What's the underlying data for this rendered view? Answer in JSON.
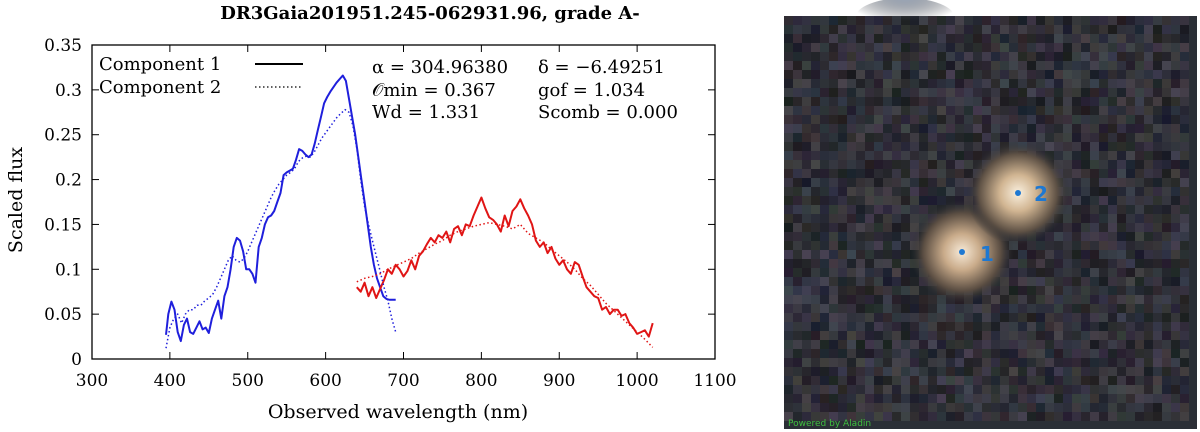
{
  "chart_data": {
    "type": "line",
    "title": "DR3Gaia201951.245-062931.96, grade A-",
    "xlabel": "Observed wavelength (nm)",
    "ylabel": "Scaled flux",
    "xlim": [
      300,
      1100
    ],
    "ylim": [
      0,
      0.35
    ],
    "xticks": [
      "300",
      "400",
      "500",
      "600",
      "700",
      "800",
      "900",
      "1000",
      "1100"
    ],
    "yticks": [
      "0",
      "0.05",
      "0.1",
      "0.15",
      "0.2",
      "0.25",
      "0.3",
      "0.35"
    ],
    "legend": {
      "position": "top-left",
      "entries": [
        "Component 1",
        "Component 2"
      ]
    },
    "annotations": [
      "α = 304.96380",
      "δ = −6.49251",
      "𝒪min = 0.367",
      "gof = 1.034",
      "Wd = 1.331",
      "Scomb = 0.000"
    ],
    "colors": {
      "blue": "#1f1fdc",
      "red": "#e01515",
      "axis": "#000000"
    },
    "series": [
      {
        "name": "Component 1",
        "segment": "BP",
        "style": "solid",
        "color": "#1f1fdc",
        "x": [
          395,
          398,
          402,
          406,
          410,
          414,
          418,
          422,
          426,
          430,
          434,
          438,
          442,
          446,
          450,
          454,
          458,
          462,
          466,
          470,
          474,
          478,
          482,
          486,
          490,
          494,
          498,
          502,
          506,
          510,
          514,
          518,
          522,
          526,
          530,
          534,
          538,
          542,
          546,
          550,
          554,
          558,
          562,
          566,
          570,
          574,
          578,
          582,
          586,
          590,
          594,
          598,
          602,
          606,
          610,
          614,
          618,
          622,
          626,
          630,
          634,
          638,
          642,
          646,
          650,
          654,
          658,
          662,
          666,
          670,
          674,
          678,
          682,
          686,
          690
        ],
        "y": [
          0.027,
          0.05,
          0.064,
          0.055,
          0.03,
          0.02,
          0.038,
          0.045,
          0.03,
          0.028,
          0.035,
          0.042,
          0.033,
          0.035,
          0.029,
          0.045,
          0.055,
          0.065,
          0.045,
          0.07,
          0.08,
          0.1,
          0.125,
          0.135,
          0.132,
          0.12,
          0.1,
          0.1,
          0.095,
          0.085,
          0.125,
          0.135,
          0.15,
          0.158,
          0.16,
          0.165,
          0.175,
          0.185,
          0.205,
          0.208,
          0.21,
          0.212,
          0.222,
          0.234,
          0.232,
          0.228,
          0.225,
          0.228,
          0.24,
          0.255,
          0.27,
          0.285,
          0.292,
          0.298,
          0.303,
          0.308,
          0.312,
          0.316,
          0.31,
          0.29,
          0.27,
          0.25,
          0.225,
          0.2,
          0.175,
          0.15,
          0.125,
          0.105,
          0.09,
          0.08,
          0.07,
          0.067,
          0.066,
          0.066,
          0.066
        ]
      },
      {
        "name": "Component 1",
        "segment": "RP",
        "style": "solid",
        "color": "#e01515",
        "x": [
          640,
          645,
          650,
          655,
          660,
          665,
          670,
          675,
          680,
          685,
          690,
          695,
          700,
          705,
          710,
          715,
          720,
          725,
          730,
          735,
          740,
          745,
          750,
          755,
          760,
          765,
          770,
          775,
          780,
          785,
          790,
          795,
          800,
          805,
          810,
          815,
          820,
          825,
          830,
          835,
          840,
          845,
          850,
          855,
          860,
          865,
          870,
          875,
          880,
          885,
          890,
          895,
          900,
          905,
          910,
          915,
          920,
          925,
          930,
          935,
          940,
          945,
          950,
          955,
          960,
          965,
          970,
          975,
          980,
          985,
          990,
          995,
          1000,
          1005,
          1010,
          1015,
          1020
        ],
        "y": [
          0.08,
          0.075,
          0.085,
          0.07,
          0.08,
          0.068,
          0.078,
          0.088,
          0.1,
          0.095,
          0.105,
          0.1,
          0.092,
          0.098,
          0.11,
          0.1,
          0.115,
          0.12,
          0.128,
          0.135,
          0.13,
          0.138,
          0.135,
          0.142,
          0.13,
          0.145,
          0.148,
          0.138,
          0.15,
          0.148,
          0.16,
          0.17,
          0.18,
          0.168,
          0.158,
          0.155,
          0.15,
          0.142,
          0.16,
          0.148,
          0.165,
          0.17,
          0.178,
          0.168,
          0.16,
          0.15,
          0.132,
          0.125,
          0.13,
          0.118,
          0.125,
          0.112,
          0.105,
          0.11,
          0.1,
          0.095,
          0.108,
          0.105,
          0.092,
          0.08,
          0.075,
          0.07,
          0.068,
          0.055,
          0.058,
          0.05,
          0.055,
          0.055,
          0.048,
          0.05,
          0.04,
          0.035,
          0.028,
          0.03,
          0.032,
          0.025,
          0.04
        ]
      },
      {
        "name": "Component 2",
        "segment": "BP",
        "style": "dotted",
        "color": "#1f1fdc",
        "x": [
          395,
          400,
          405,
          410,
          415,
          420,
          425,
          430,
          435,
          440,
          445,
          450,
          455,
          460,
          465,
          470,
          475,
          480,
          485,
          490,
          495,
          500,
          505,
          510,
          515,
          520,
          525,
          530,
          535,
          540,
          545,
          550,
          555,
          560,
          565,
          570,
          575,
          580,
          585,
          590,
          595,
          600,
          605,
          610,
          615,
          620,
          625,
          630,
          635,
          640,
          645,
          650,
          655,
          660,
          665,
          670,
          675,
          680,
          685,
          690
        ],
        "y": [
          0.012,
          0.035,
          0.045,
          0.05,
          0.04,
          0.05,
          0.055,
          0.055,
          0.06,
          0.06,
          0.065,
          0.068,
          0.072,
          0.08,
          0.09,
          0.1,
          0.11,
          0.115,
          0.11,
          0.108,
          0.112,
          0.12,
          0.13,
          0.14,
          0.15,
          0.16,
          0.17,
          0.18,
          0.188,
          0.195,
          0.2,
          0.205,
          0.208,
          0.212,
          0.22,
          0.224,
          0.226,
          0.225,
          0.23,
          0.238,
          0.246,
          0.252,
          0.258,
          0.264,
          0.27,
          0.274,
          0.278,
          0.275,
          0.26,
          0.235,
          0.2,
          0.17,
          0.15,
          0.132,
          0.115,
          0.098,
          0.08,
          0.065,
          0.045,
          0.03
        ]
      },
      {
        "name": "Component 2",
        "segment": "RP",
        "style": "dotted",
        "color": "#e01515",
        "x": [
          640,
          650,
          660,
          670,
          680,
          690,
          700,
          710,
          720,
          730,
          740,
          750,
          760,
          770,
          780,
          790,
          800,
          810,
          820,
          830,
          840,
          850,
          860,
          870,
          880,
          890,
          900,
          910,
          920,
          930,
          940,
          950,
          960,
          970,
          980,
          990,
          1000,
          1010,
          1020
        ],
        "y": [
          0.086,
          0.09,
          0.092,
          0.095,
          0.1,
          0.104,
          0.108,
          0.112,
          0.118,
          0.123,
          0.128,
          0.132,
          0.138,
          0.142,
          0.145,
          0.148,
          0.15,
          0.152,
          0.15,
          0.148,
          0.145,
          0.15,
          0.14,
          0.135,
          0.13,
          0.122,
          0.115,
          0.108,
          0.1,
          0.09,
          0.082,
          0.072,
          0.062,
          0.054,
          0.046,
          0.038,
          0.03,
          0.022,
          0.013
        ]
      }
    ]
  },
  "sky": {
    "markers": [
      "1",
      "2"
    ],
    "credit": "Powered by Aladin"
  }
}
